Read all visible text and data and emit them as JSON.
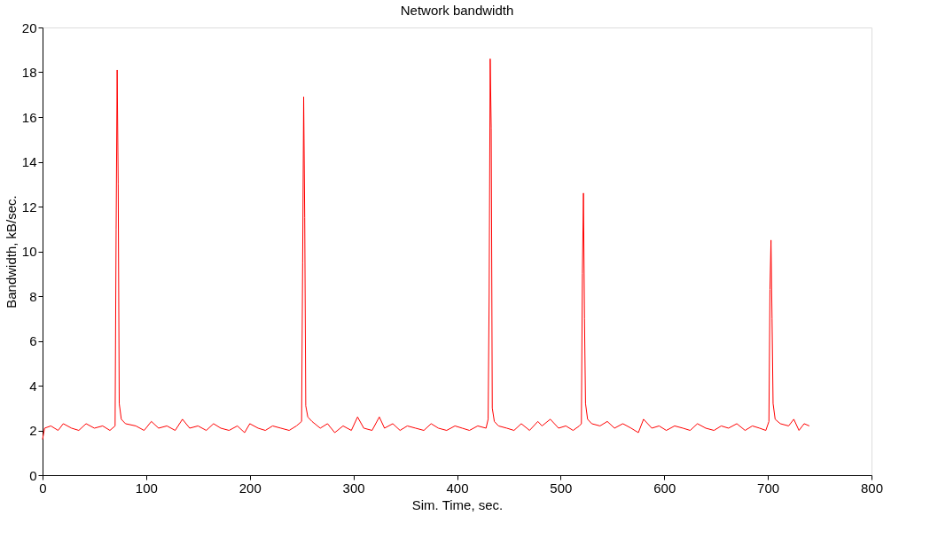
{
  "chart_data": {
    "type": "line",
    "title": "Network bandwidth",
    "xlabel": "Sim. Time, sec.",
    "ylabel": "Bandwidth, kB/sec.",
    "xlim": [
      0,
      800
    ],
    "xticks": [
      0,
      100,
      200,
      300,
      400,
      500,
      600,
      700,
      800
    ],
    "ylim": [
      0,
      20
    ],
    "yticks": [
      0,
      2,
      4,
      6,
      8,
      10,
      12,
      14,
      16,
      18,
      20
    ],
    "grid": false,
    "legend": false,
    "series": [
      {
        "color": "#ff0000",
        "x": [
          0,
          2,
          8,
          15,
          20,
          28,
          35,
          42,
          50,
          58,
          65,
          70,
          71,
          72,
          73,
          74,
          76,
          80,
          90,
          98,
          105,
          112,
          120,
          128,
          135,
          142,
          150,
          158,
          165,
          172,
          180,
          188,
          195,
          200,
          208,
          215,
          222,
          230,
          238,
          245,
          250,
          251,
          252,
          253,
          254,
          256,
          260,
          268,
          275,
          282,
          290,
          298,
          304,
          310,
          318,
          325,
          330,
          338,
          345,
          352,
          360,
          368,
          375,
          382,
          390,
          398,
          405,
          412,
          420,
          428,
          430,
          431,
          432,
          433,
          434,
          436,
          440,
          448,
          455,
          462,
          470,
          478,
          482,
          490,
          498,
          505,
          512,
          518,
          520,
          521,
          522,
          523,
          524,
          526,
          530,
          538,
          545,
          552,
          560,
          568,
          575,
          580,
          588,
          595,
          602,
          610,
          618,
          625,
          632,
          640,
          648,
          655,
          662,
          670,
          678,
          685,
          692,
          698,
          701,
          702,
          703,
          704,
          705,
          707,
          712,
          720,
          725,
          730,
          735,
          740
        ],
        "values": [
          1.6,
          2.1,
          2.2,
          2.0,
          2.3,
          2.1,
          2.0,
          2.3,
          2.1,
          2.2,
          2.0,
          2.2,
          11,
          18.1,
          13,
          3.2,
          2.5,
          2.3,
          2.2,
          2.0,
          2.4,
          2.1,
          2.2,
          2.0,
          2.5,
          2.1,
          2.2,
          2.0,
          2.3,
          2.1,
          2.0,
          2.2,
          1.9,
          2.3,
          2.1,
          2.0,
          2.2,
          2.1,
          2.0,
          2.2,
          2.4,
          9.5,
          16.9,
          11.5,
          3.1,
          2.6,
          2.4,
          2.1,
          2.3,
          1.9,
          2.2,
          2.0,
          2.6,
          2.1,
          2.0,
          2.6,
          2.1,
          2.3,
          2.0,
          2.2,
          2.1,
          2.0,
          2.3,
          2.1,
          2.0,
          2.2,
          2.1,
          2.0,
          2.2,
          2.1,
          2.5,
          8,
          18.6,
          15.5,
          3.0,
          2.4,
          2.2,
          2.1,
          2.0,
          2.3,
          2.0,
          2.4,
          2.2,
          2.5,
          2.1,
          2.2,
          2.0,
          2.2,
          2.3,
          9,
          12.6,
          7,
          3.2,
          2.5,
          2.3,
          2.2,
          2.4,
          2.1,
          2.3,
          2.1,
          1.9,
          2.5,
          2.1,
          2.2,
          2.0,
          2.2,
          2.1,
          2.0,
          2.3,
          2.1,
          2.0,
          2.2,
          2.1,
          2.3,
          2.0,
          2.2,
          2.1,
          2.0,
          2.4,
          8.3,
          10.5,
          7,
          3.2,
          2.5,
          2.3,
          2.2,
          2.5,
          2.0,
          2.3,
          2.2
        ]
      }
    ]
  }
}
